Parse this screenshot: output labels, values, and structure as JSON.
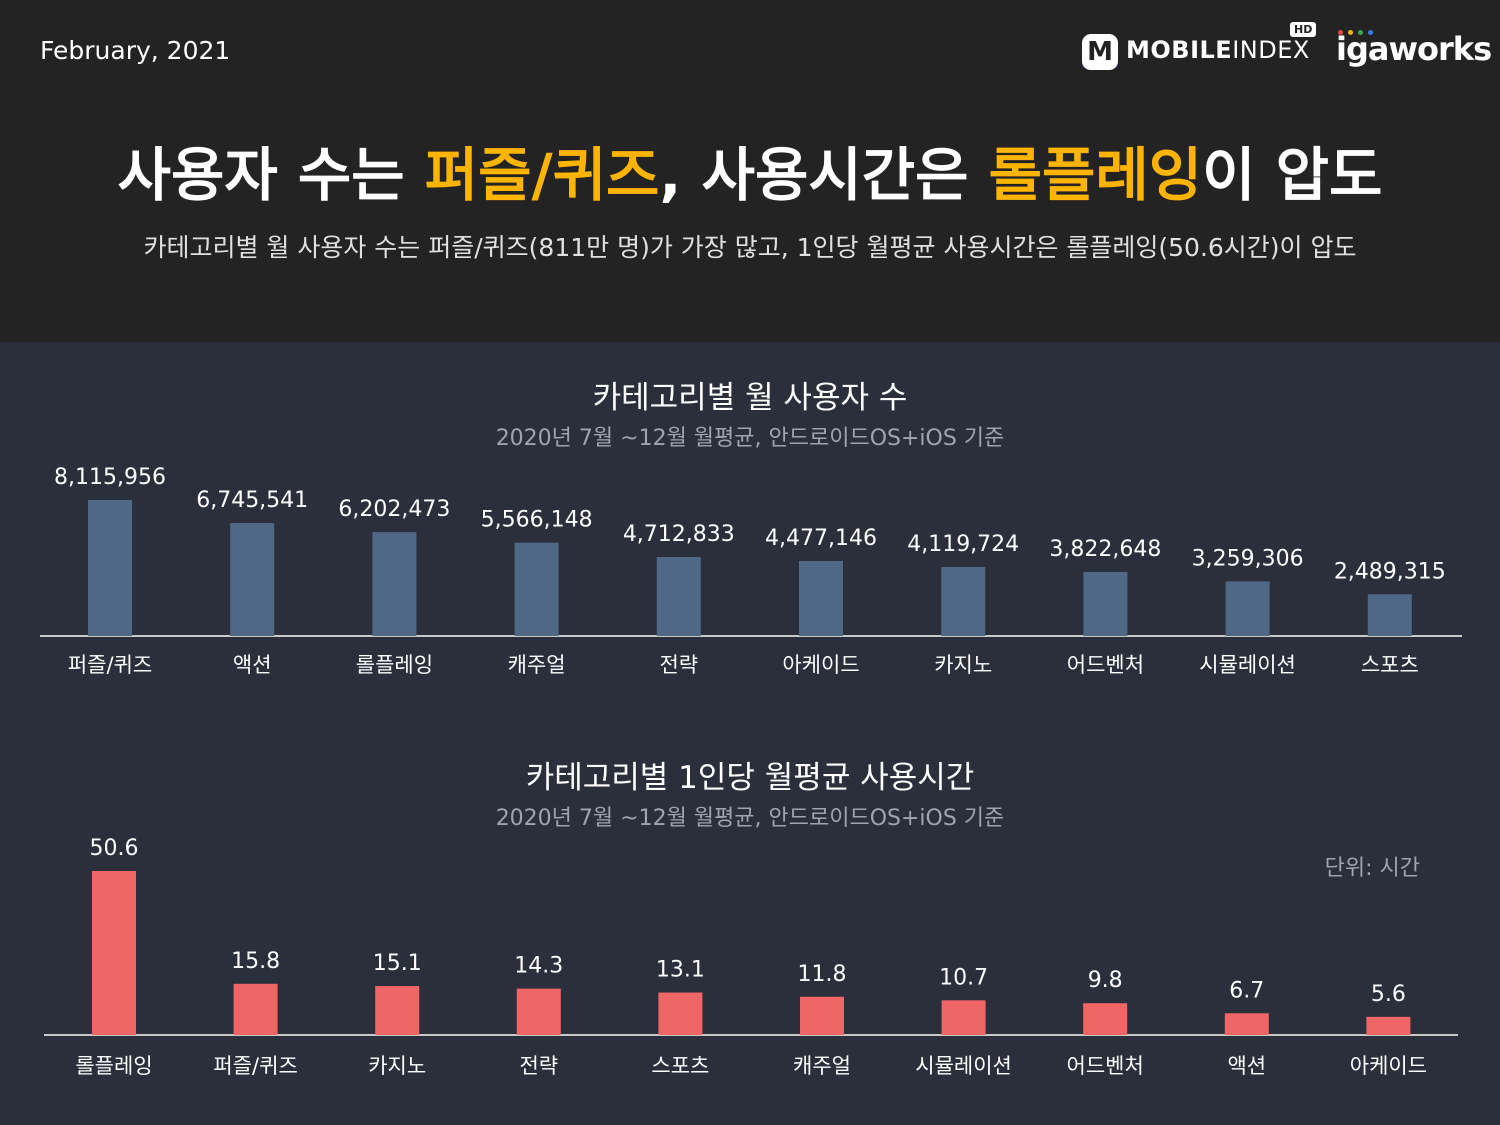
{
  "header": {
    "date": "February, 2021",
    "headline": {
      "p1": "사용자 수는 ",
      "h1": "퍼즐/퀴즈",
      "p2": ", 사용시간은 ",
      "h2": "롤플레잉",
      "p3": "이 압도"
    },
    "subheadline": "카테고리별 월 사용자 수는 퍼즐/퀴즈(811만 명)가 가장 많고, 1인당 월평균 사용시간은 롤플레잉(50.6시간)이 압도",
    "logos": {
      "mobileindex_bold": "MOBILE",
      "mobileindex_thin": "INDEX",
      "mobileindex_badge": "M",
      "hd_badge": "HD",
      "igaworks": "igaworks"
    }
  },
  "colors": {
    "header_bg": "#232323",
    "body_bg": "#2b2f3c",
    "highlight": "#ffb400",
    "users_bar": "#4f6886",
    "time_bar": "#f06666",
    "axis": "#c8c8c8"
  },
  "chart_data": [
    {
      "type": "bar",
      "title": "카테고리별  월 사용자 수",
      "subtitle": "2020년 7월 ~12월  월평균, 안드로이드OS+iOS 기준",
      "categories": [
        "퍼즐/퀴즈",
        "액션",
        "롤플레잉",
        "캐주얼",
        "전략",
        "아케이드",
        "카지노",
        "어드벤처",
        "시뮬레이션",
        "스포츠"
      ],
      "values": [
        8115956,
        6745541,
        6202473,
        5566148,
        4712833,
        4477146,
        4119724,
        3822648,
        3259306,
        2489315
      ],
      "labels": [
        "8,115,956",
        "6,745,541",
        "6,202,473",
        "5,566,148",
        "4,712,833",
        "4,477,146",
        "4,119,724",
        "3,822,648",
        "3,259,306",
        "2,489,315"
      ],
      "ylim": [
        0,
        8115956
      ],
      "grid": false
    },
    {
      "type": "bar",
      "title": "카테고리별 1인당 월평균 사용시간",
      "subtitle": "2020년 7월 ~12월  월평균, 안드로이드OS+iOS 기준",
      "unit_label": "단위: 시간",
      "categories": [
        "롤플레잉",
        "퍼즐/퀴즈",
        "카지노",
        "전략",
        "스포츠",
        "캐주얼",
        "시뮬레이션",
        "어드벤처",
        "액션",
        "아케이드"
      ],
      "values": [
        50.6,
        15.8,
        15.1,
        14.3,
        13.1,
        11.8,
        10.7,
        9.8,
        6.7,
        5.6
      ],
      "labels": [
        "50.6",
        "15.8",
        "15.1",
        "14.3",
        "13.1",
        "11.8",
        "10.7",
        "9.8",
        "6.7",
        "5.6"
      ],
      "ylim": [
        0,
        50.6
      ],
      "grid": false
    }
  ]
}
